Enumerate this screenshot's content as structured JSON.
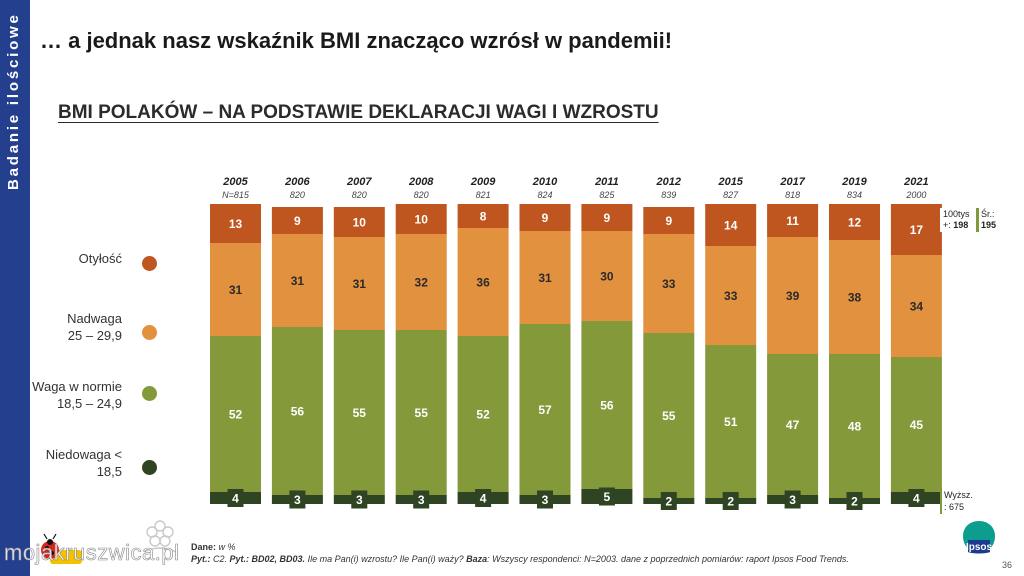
{
  "sidebar": {
    "label": "Badanie ilościowe"
  },
  "page": {
    "title": "… a jednak nasz wskaźnik BMI znacząco wzrósł w pandemii!",
    "number": "36"
  },
  "colors": {
    "sidebar": "#253f8f",
    "obese": "#c0561f",
    "overweight": "#e2913f",
    "normal": "#83993a",
    "under": "#2f4422",
    "note_border": "#7f9a3a"
  },
  "legend": {
    "obese": [
      "Otyłość"
    ],
    "overweight": [
      "Nadwaga",
      "25 – 29,9"
    ],
    "normal": [
      "Waga w normie",
      "18,5 – 24,9"
    ],
    "under": [
      "Niedowaga <",
      "18,5"
    ]
  },
  "notes": {
    "n100_line1": "100tys",
    "n100_line2_prefix": "+: ",
    "n100_value": "198",
    "sr_line1": "Śr.:",
    "sr_value": "195",
    "wyz_line1": "Wyższ.",
    "wyz_line2": ": 675"
  },
  "source": {
    "line1_label": "Dane:",
    "line1_text": " w %",
    "line2_label1": "Pyt.:",
    "line2_text1": " C2. ",
    "line2_label2": "Pyt.: BD02, BD03.",
    "line2_text2": " Ile ma Pan(i) wzrostu? Ile Pan(i) waży? ",
    "line2_label3": "Baza",
    "line2_text3": ": Wszyscy respondenci: N=2003. dane z poprzednich pomiarów: raport Ipsos Food Trends."
  },
  "logo": {
    "text": "Ipsos"
  },
  "watermark": {
    "text": "mojakruszwica.pl"
  },
  "chart_data": {
    "type": "bar",
    "stacked": true,
    "percent": true,
    "title": "BMI POLAKÓW – NA PODSTAWIE DEKLARACJI WAGI I WZROSTU",
    "categories": [
      "2005",
      "2006",
      "2007",
      "2008",
      "2009",
      "2010",
      "2011",
      "2012",
      "2015",
      "2017",
      "2019",
      "2021"
    ],
    "sample_sizes": [
      "N=815",
      "820",
      "820",
      "820",
      "821",
      "824",
      "825",
      "839",
      "827",
      "818",
      "834",
      "2000"
    ],
    "series": [
      {
        "name": "Niedowaga < 18,5",
        "key": "under",
        "values": [
          4,
          3,
          3,
          3,
          4,
          3,
          5,
          2,
          2,
          3,
          2,
          4
        ]
      },
      {
        "name": "Waga w normie 18,5 – 24,9",
        "key": "normal",
        "values": [
          52,
          56,
          55,
          55,
          52,
          57,
          56,
          55,
          51,
          47,
          48,
          45
        ]
      },
      {
        "name": "Nadwaga 25 – 29,9",
        "key": "overweight",
        "values": [
          31,
          31,
          31,
          32,
          36,
          31,
          30,
          33,
          33,
          39,
          38,
          34
        ]
      },
      {
        "name": "Otyłość",
        "key": "obese",
        "values": [
          13,
          9,
          10,
          10,
          8,
          9,
          9,
          9,
          14,
          11,
          12,
          17
        ]
      }
    ],
    "ylim": [
      0,
      100
    ],
    "legend_position": "left"
  }
}
